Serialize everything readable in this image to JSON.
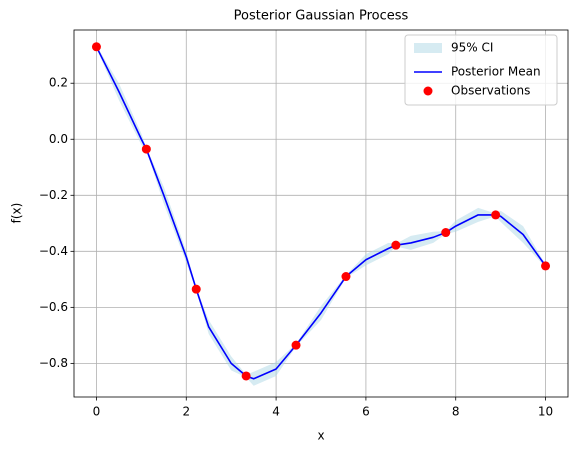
{
  "chart_data": {
    "type": "line",
    "title": "Posterior Gaussian Process",
    "xlabel": "x",
    "ylabel": "f(x)",
    "xlim": [
      -0.5,
      10.5
    ],
    "ylim": [
      -0.92,
      0.39
    ],
    "xticks": [
      0,
      2,
      4,
      6,
      8,
      10
    ],
    "yticks": [
      0.2,
      {
        "value": 0,
        "label": "0.0"
      },
      {
        "value": -0.2,
        "label": "−0.2"
      },
      {
        "value": -0.4,
        "label": "−0.4"
      },
      {
        "value": -0.6,
        "label": "−0.6"
      },
      {
        "value": -0.8,
        "label": "−0.8"
      }
    ],
    "grid": true,
    "legend": "upper right",
    "x": [
      0,
      0.5,
      1.0,
      1.111,
      1.5,
      2.0,
      2.222,
      2.5,
      3.0,
      3.333,
      3.5,
      4.0,
      4.444,
      5.0,
      5.556,
      6.0,
      6.5,
      6.667,
      7.0,
      7.5,
      7.778,
      8.0,
      8.5,
      8.889,
      9.0,
      9.5,
      10.0
    ],
    "band": {
      "name": "95% CI",
      "color": "#add8e6",
      "upper": [
        0.335,
        0.2,
        0.02,
        -0.03,
        -0.17,
        -0.4,
        -0.53,
        -0.645,
        -0.775,
        -0.84,
        -0.83,
        -0.795,
        -0.73,
        -0.595,
        -0.485,
        -0.41,
        -0.37,
        -0.373,
        -0.345,
        -0.33,
        -0.328,
        -0.29,
        -0.245,
        -0.265,
        -0.255,
        -0.31,
        -0.447
      ],
      "lower": [
        0.325,
        0.14,
        -0.02,
        -0.04,
        -0.23,
        -0.44,
        -0.54,
        -0.695,
        -0.825,
        -0.85,
        -0.88,
        -0.845,
        -0.74,
        -0.645,
        -0.495,
        -0.45,
        -0.41,
        -0.383,
        -0.395,
        -0.37,
        -0.338,
        -0.33,
        -0.295,
        -0.275,
        -0.295,
        -0.37,
        -0.457
      ]
    },
    "series": [
      {
        "name": "Posterior Mean",
        "color": "#0000ff",
        "values": [
          0.33,
          0.17,
          0.0,
          -0.035,
          -0.2,
          -0.42,
          -0.535,
          -0.67,
          -0.8,
          -0.845,
          -0.855,
          -0.82,
          -0.735,
          -0.62,
          -0.49,
          -0.43,
          -0.39,
          -0.378,
          -0.37,
          -0.35,
          -0.333,
          -0.31,
          -0.27,
          -0.27,
          -0.275,
          -0.34,
          -0.452
        ]
      }
    ],
    "observations": {
      "name": "Observations",
      "color": "#ff0000",
      "x": [
        0,
        1.111,
        2.222,
        3.333,
        4.444,
        5.556,
        6.667,
        7.778,
        8.889,
        10
      ],
      "values": [
        0.33,
        -0.035,
        -0.535,
        -0.845,
        -0.735,
        -0.49,
        -0.378,
        -0.333,
        -0.27,
        -0.452
      ]
    }
  }
}
